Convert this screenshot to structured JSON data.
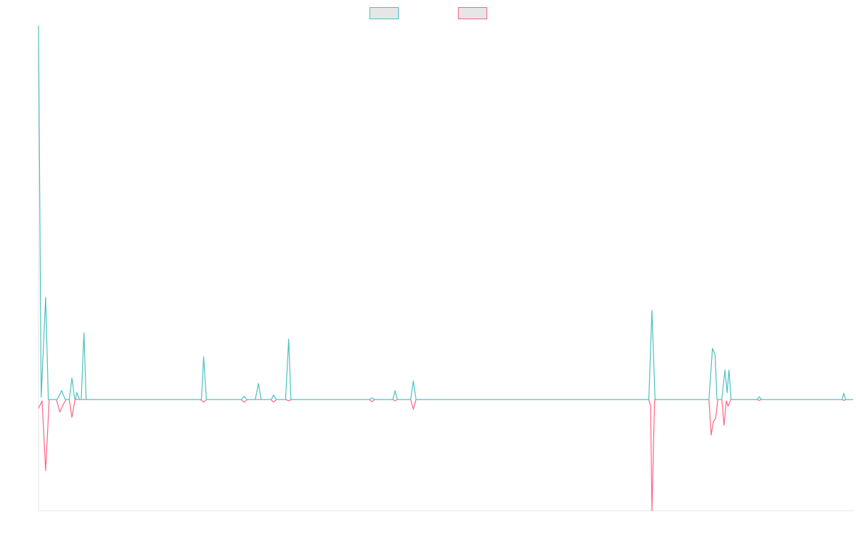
{
  "colors": {
    "background": "#ffffff",
    "axis": "#e6e6e6",
    "legend_fill": "#e6e6e6"
  },
  "chart_data": {
    "type": "line",
    "title": "",
    "xlabel": "",
    "ylabel": "",
    "grid": false,
    "legend_position": "top-center",
    "x_range": [
      0,
      183
    ],
    "ylim": [
      -25,
      84
    ],
    "x_tick_labels": [],
    "y_tick_labels": [],
    "series": [
      {
        "color": "#4bc0c0",
        "points": [
          [
            0,
            84
          ],
          [
            0.6,
            0.5
          ],
          [
            1.6,
            23
          ],
          [
            2.2,
            0
          ],
          [
            4.2,
            0
          ],
          [
            5.2,
            2
          ],
          [
            6,
            0
          ],
          [
            6.9,
            0
          ],
          [
            7.5,
            4.8
          ],
          [
            8.1,
            0.3
          ],
          [
            8.3,
            0
          ],
          [
            8.6,
            1.6
          ],
          [
            9.2,
            0
          ],
          [
            9.6,
            0
          ],
          [
            10.2,
            15
          ],
          [
            10.7,
            0
          ],
          [
            36.6,
            0
          ],
          [
            37.1,
            9.6
          ],
          [
            37.7,
            0
          ],
          [
            45.6,
            0
          ],
          [
            46.2,
            0.7
          ],
          [
            46.8,
            0
          ],
          [
            48.7,
            0
          ],
          [
            49.4,
            3.6
          ],
          [
            50,
            0
          ],
          [
            52.3,
            0
          ],
          [
            52.8,
            1
          ],
          [
            53.4,
            0
          ],
          [
            55.5,
            0
          ],
          [
            56.2,
            13.6
          ],
          [
            56.7,
            0
          ],
          [
            74.4,
            0
          ],
          [
            74.9,
            0.4
          ],
          [
            75.4,
            0
          ],
          [
            79.6,
            0
          ],
          [
            80.1,
            2
          ],
          [
            80.6,
            0
          ],
          [
            83.6,
            0
          ],
          [
            84.2,
            4.2
          ],
          [
            84.8,
            0
          ],
          [
            137.1,
            0
          ],
          [
            137.8,
            20
          ],
          [
            138.5,
            0
          ],
          [
            150.6,
            0
          ],
          [
            151.4,
            11.5
          ],
          [
            152,
            10
          ],
          [
            152.4,
            0
          ],
          [
            153.5,
            0
          ],
          [
            154.2,
            6.6
          ],
          [
            154.7,
            1.5
          ],
          [
            155.1,
            6.6
          ],
          [
            155.6,
            0
          ],
          [
            161.4,
            0
          ],
          [
            161.9,
            0.6
          ],
          [
            162.4,
            0
          ],
          [
            180.5,
            0
          ],
          [
            180.9,
            1.4
          ],
          [
            181.3,
            0
          ],
          [
            183,
            0
          ]
        ]
      },
      {
        "color": "#ff6384",
        "points": [
          [
            0,
            -2
          ],
          [
            0.8,
            -0.3
          ],
          [
            1.6,
            -16
          ],
          [
            2.4,
            0
          ],
          [
            4,
            0
          ],
          [
            4.8,
            -2.8
          ],
          [
            5.6,
            -1
          ],
          [
            6.2,
            0
          ],
          [
            6.9,
            0
          ],
          [
            7.5,
            -4
          ],
          [
            8.2,
            0
          ],
          [
            10.7,
            0
          ],
          [
            36.4,
            0
          ],
          [
            37.1,
            -0.6
          ],
          [
            37.8,
            0
          ],
          [
            45.5,
            0
          ],
          [
            46.2,
            -0.6
          ],
          [
            46.9,
            0
          ],
          [
            52.2,
            0
          ],
          [
            52.8,
            -0.6
          ],
          [
            53.5,
            0
          ],
          [
            55.6,
            0
          ],
          [
            56.2,
            -0.3
          ],
          [
            56.8,
            0
          ],
          [
            74.3,
            0
          ],
          [
            74.9,
            -0.5
          ],
          [
            75.5,
            0
          ],
          [
            79.6,
            0
          ],
          [
            80.1,
            -0.3
          ],
          [
            80.6,
            0
          ],
          [
            83.6,
            0
          ],
          [
            84.2,
            -2.2
          ],
          [
            84.8,
            0
          ],
          [
            137.1,
            0
          ],
          [
            137.5,
            -1.5
          ],
          [
            137.8,
            -25
          ],
          [
            138.4,
            0
          ],
          [
            150.6,
            0
          ],
          [
            151.1,
            -8
          ],
          [
            151.6,
            -5
          ],
          [
            152.1,
            -4.3
          ],
          [
            152.6,
            0
          ],
          [
            153.5,
            0
          ],
          [
            154,
            -5.8
          ],
          [
            154.5,
            -0.3
          ],
          [
            154.9,
            -1.5
          ],
          [
            155.5,
            0
          ],
          [
            161.4,
            0
          ],
          [
            161.9,
            -0.2
          ],
          [
            162.4,
            0
          ],
          [
            180.4,
            0
          ],
          [
            180.9,
            -0.2
          ],
          [
            181.4,
            0
          ],
          [
            183,
            0
          ]
        ]
      }
    ]
  }
}
